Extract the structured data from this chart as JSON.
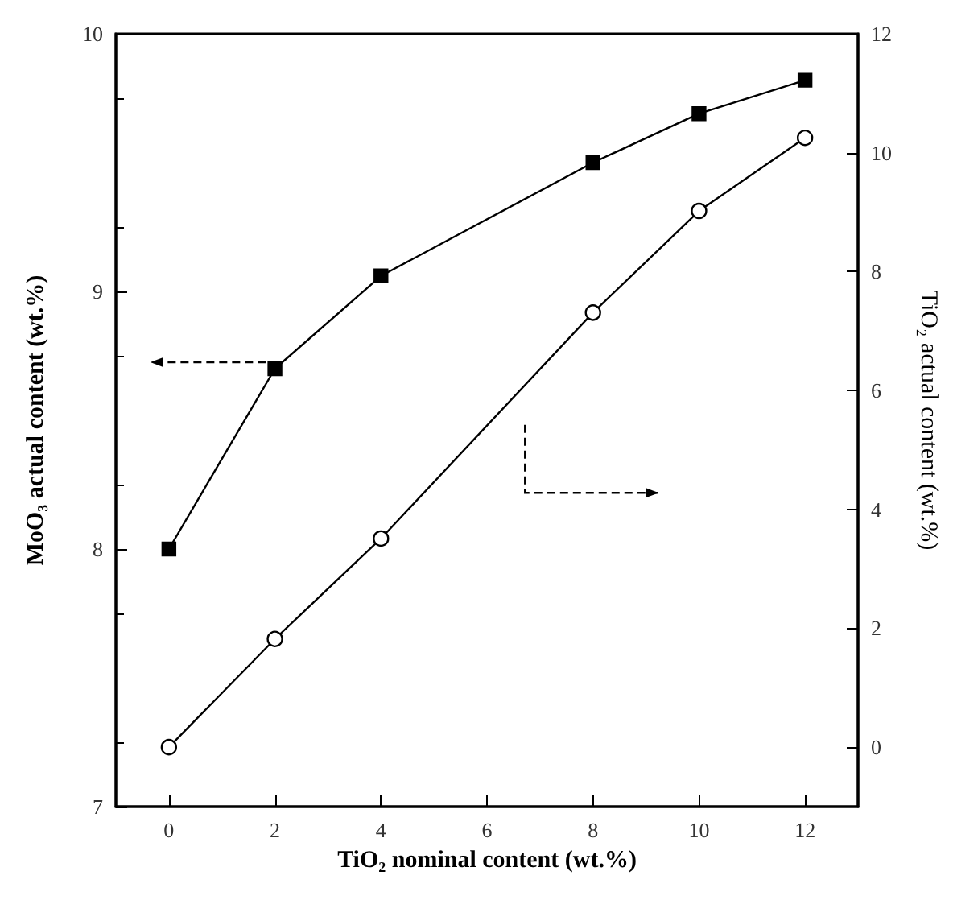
{
  "chart_data": {
    "type": "line",
    "xlabel": "TiO₂ nominal content (wt.%)",
    "ylabel": "MoO₃ actual content (wt.%)",
    "y2label": "TiO₂ actual content (wt.%)",
    "x": [
      0,
      2,
      4,
      8,
      10,
      12
    ],
    "series": [
      {
        "color": "#000000",
        "marker": "square",
        "values": [
          8.0,
          8.7,
          9.06,
          9.5,
          9.69,
          9.82
        ]
      },
      {
        "color": "#000000",
        "marker": "circle",
        "axis": "y2",
        "values": [
          0,
          1.82,
          3.51,
          7.31,
          9.02,
          10.25
        ]
      }
    ],
    "xlim": [
      -1,
      13
    ],
    "xticks": [
      0,
      2,
      4,
      6,
      8,
      10,
      12
    ],
    "ylim": [
      7,
      10
    ],
    "yticks": [
      7,
      8,
      9,
      10
    ],
    "y2lim": [
      -1,
      12
    ],
    "y2ticks": [
      0,
      2,
      4,
      6,
      8,
      10,
      12
    ],
    "grid": false,
    "line_style": "solid"
  }
}
